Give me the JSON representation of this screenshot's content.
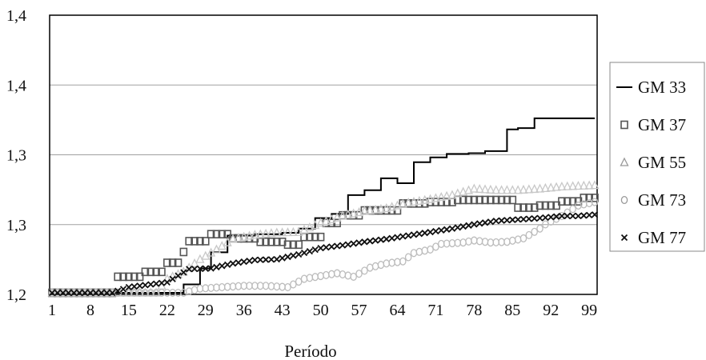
{
  "chart_data": {
    "type": "line",
    "xlabel": "Período",
    "ylabel": "",
    "title": "",
    "x_ticks": [
      "1",
      "8",
      "15",
      "22",
      "29",
      "36",
      "43",
      "50",
      "57",
      "64",
      "71",
      "78",
      "85",
      "92",
      "99"
    ],
    "y_ticks": [
      "1,2",
      "1,3",
      "1,3",
      "1,4",
      "1,4"
    ],
    "grid": "horizontal",
    "legend_position": "right",
    "x_range": [
      1,
      100
    ],
    "series": [
      {
        "name": "GM 33",
        "marker": "line",
        "color": "#000000",
        "points": [
          [
            1,
            0.0
          ],
          [
            25,
            0.0
          ],
          [
            25,
            0.12
          ],
          [
            28,
            0.12
          ],
          [
            28,
            0.35
          ],
          [
            30,
            0.35
          ],
          [
            30,
            0.58
          ],
          [
            33,
            0.58
          ],
          [
            33,
            0.82
          ],
          [
            38,
            0.82
          ],
          [
            38,
            0.84
          ],
          [
            43,
            0.84
          ],
          [
            43,
            0.86
          ],
          [
            46,
            0.86
          ],
          [
            46,
            0.92
          ],
          [
            49,
            0.92
          ],
          [
            49,
            1.07
          ],
          [
            52,
            1.07
          ],
          [
            52,
            1.13
          ],
          [
            55,
            1.13
          ],
          [
            55,
            1.4
          ],
          [
            58,
            1.4
          ],
          [
            58,
            1.47
          ],
          [
            61,
            1.47
          ],
          [
            61,
            1.64
          ],
          [
            64,
            1.64
          ],
          [
            64,
            1.57
          ],
          [
            67,
            1.57
          ],
          [
            67,
            1.87
          ],
          [
            70,
            1.87
          ],
          [
            70,
            1.94
          ],
          [
            73,
            1.94
          ],
          [
            73,
            1.99
          ],
          [
            77,
            1.99
          ],
          [
            77,
            2.0
          ],
          [
            80,
            2.0
          ],
          [
            80,
            2.03
          ],
          [
            84,
            2.03
          ],
          [
            84,
            2.34
          ],
          [
            86,
            2.34
          ],
          [
            86,
            2.36
          ],
          [
            89,
            2.36
          ],
          [
            89,
            2.5
          ],
          [
            100,
            2.5
          ]
        ]
      },
      {
        "name": "GM 37",
        "marker": "square",
        "color": "#555555",
        "points": [
          [
            1,
            0.0
          ],
          [
            12,
            0.0
          ],
          [
            13,
            0.23
          ],
          [
            17,
            0.23
          ],
          [
            18,
            0.3
          ],
          [
            21,
            0.3
          ],
          [
            22,
            0.43
          ],
          [
            24,
            0.43
          ],
          [
            26,
            0.74
          ],
          [
            29,
            0.74
          ],
          [
            30,
            0.84
          ],
          [
            33,
            0.84
          ],
          [
            34,
            0.78
          ],
          [
            38,
            0.78
          ],
          [
            39,
            0.73
          ],
          [
            43,
            0.73
          ],
          [
            44,
            0.69
          ],
          [
            46,
            0.69
          ],
          [
            47,
            0.8
          ],
          [
            50,
            0.8
          ],
          [
            51,
            1.0
          ],
          [
            53,
            1.0
          ],
          [
            54,
            1.11
          ],
          [
            57,
            1.11
          ],
          [
            58,
            1.18
          ],
          [
            64,
            1.18
          ],
          [
            65,
            1.28
          ],
          [
            69,
            1.28
          ],
          [
            70,
            1.3
          ],
          [
            74,
            1.3
          ],
          [
            75,
            1.33
          ],
          [
            85,
            1.33
          ],
          [
            86,
            1.22
          ],
          [
            89,
            1.22
          ],
          [
            90,
            1.25
          ],
          [
            93,
            1.25
          ],
          [
            94,
            1.31
          ],
          [
            97,
            1.31
          ],
          [
            98,
            1.36
          ],
          [
            100,
            1.36
          ]
        ]
      },
      {
        "name": "GM 55",
        "marker": "triangle",
        "color": "#c8c8c8",
        "points": [
          [
            1,
            0.0
          ],
          [
            20,
            0.0
          ],
          [
            22,
            0.2
          ],
          [
            25,
            0.3
          ],
          [
            28,
            0.48
          ],
          [
            31,
            0.62
          ],
          [
            34,
            0.77
          ],
          [
            38,
            0.83
          ],
          [
            42,
            0.86
          ],
          [
            46,
            0.87
          ],
          [
            50,
            1.0
          ],
          [
            54,
            1.1
          ],
          [
            58,
            1.17
          ],
          [
            62,
            1.21
          ],
          [
            66,
            1.29
          ],
          [
            70,
            1.34
          ],
          [
            74,
            1.4
          ],
          [
            78,
            1.49
          ],
          [
            82,
            1.47
          ],
          [
            86,
            1.47
          ],
          [
            90,
            1.49
          ],
          [
            94,
            1.52
          ],
          [
            100,
            1.54
          ]
        ]
      },
      {
        "name": "GM 73",
        "marker": "circle",
        "color": "#bcbcbc",
        "points": [
          [
            1,
            0.0
          ],
          [
            25,
            0.0
          ],
          [
            28,
            0.06
          ],
          [
            32,
            0.08
          ],
          [
            36,
            0.1
          ],
          [
            40,
            0.1
          ],
          [
            44,
            0.08
          ],
          [
            47,
            0.2
          ],
          [
            50,
            0.24
          ],
          [
            53,
            0.28
          ],
          [
            56,
            0.23
          ],
          [
            59,
            0.36
          ],
          [
            62,
            0.42
          ],
          [
            65,
            0.45
          ],
          [
            67,
            0.57
          ],
          [
            70,
            0.62
          ],
          [
            72,
            0.7
          ],
          [
            76,
            0.72
          ],
          [
            78,
            0.75
          ],
          [
            81,
            0.72
          ],
          [
            84,
            0.73
          ],
          [
            87,
            0.78
          ],
          [
            90,
            0.92
          ],
          [
            91,
            0.98
          ],
          [
            94,
            1.1
          ],
          [
            97,
            1.25
          ],
          [
            100,
            1.3
          ]
        ]
      },
      {
        "name": "GM 77",
        "marker": "x",
        "color": "#111111",
        "points": [
          [
            1,
            0.0
          ],
          [
            12,
            0.0
          ],
          [
            15,
            0.08
          ],
          [
            19,
            0.12
          ],
          [
            22,
            0.15
          ],
          [
            26,
            0.34
          ],
          [
            30,
            0.35
          ],
          [
            34,
            0.42
          ],
          [
            38,
            0.47
          ],
          [
            42,
            0.48
          ],
          [
            46,
            0.55
          ],
          [
            50,
            0.64
          ],
          [
            54,
            0.68
          ],
          [
            58,
            0.73
          ],
          [
            62,
            0.77
          ],
          [
            66,
            0.82
          ],
          [
            70,
            0.87
          ],
          [
            74,
            0.92
          ],
          [
            78,
            0.98
          ],
          [
            82,
            1.03
          ],
          [
            86,
            1.05
          ],
          [
            90,
            1.07
          ],
          [
            94,
            1.1
          ],
          [
            97,
            1.1
          ],
          [
            100,
            1.12
          ]
        ]
      }
    ]
  }
}
